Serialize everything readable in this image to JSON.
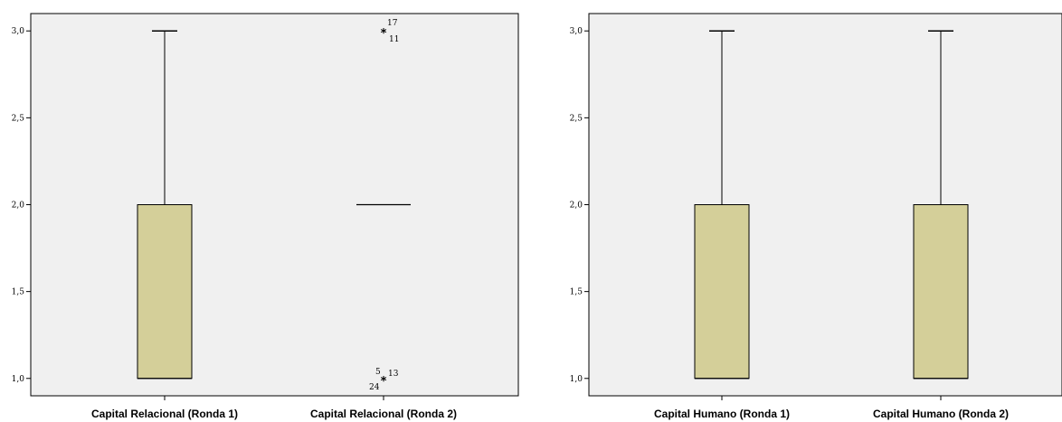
{
  "chart_data": [
    {
      "type": "boxplot",
      "ylim": [
        0.9,
        3.1
      ],
      "y_ticks": [
        "1,0",
        "1,5",
        "2,0",
        "2,5",
        "3,0"
      ],
      "y_tick_values": [
        1.0,
        1.5,
        2.0,
        2.5,
        3.0
      ],
      "grid": false,
      "background": "#f0f0f0",
      "box_color": "#d4cf99",
      "categories": [
        "Capital Relacional (Ronda 1)",
        "Capital Relacional (Ronda 2)"
      ],
      "boxes": [
        {
          "min": 1.0,
          "q1": 1.0,
          "median": 1.0,
          "q3": 2.0,
          "max": 3.0,
          "outliers": []
        },
        {
          "min": 2.0,
          "q1": 2.0,
          "median": 2.0,
          "q3": 2.0,
          "max": 2.0,
          "outliers": [
            {
              "value": 3.0,
              "labels": [
                "17",
                "11"
              ]
            },
            {
              "value": 1.0,
              "labels": [
                "5",
                "13",
                "24"
              ]
            }
          ]
        }
      ]
    },
    {
      "type": "boxplot",
      "ylim": [
        0.9,
        3.1
      ],
      "y_ticks": [
        "1,0",
        "1,5",
        "2,0",
        "2,5",
        "3,0"
      ],
      "y_tick_values": [
        1.0,
        1.5,
        2.0,
        2.5,
        3.0
      ],
      "grid": false,
      "background": "#f0f0f0",
      "box_color": "#d4cf99",
      "categories": [
        "Capital Humano (Ronda 1)",
        "Capital Humano (Ronda 2)"
      ],
      "boxes": [
        {
          "min": 1.0,
          "q1": 1.0,
          "median": 1.0,
          "q3": 2.0,
          "max": 3.0,
          "outliers": []
        },
        {
          "min": 1.0,
          "q1": 1.0,
          "median": 1.0,
          "q3": 2.0,
          "max": 3.0,
          "outliers": []
        }
      ]
    }
  ]
}
